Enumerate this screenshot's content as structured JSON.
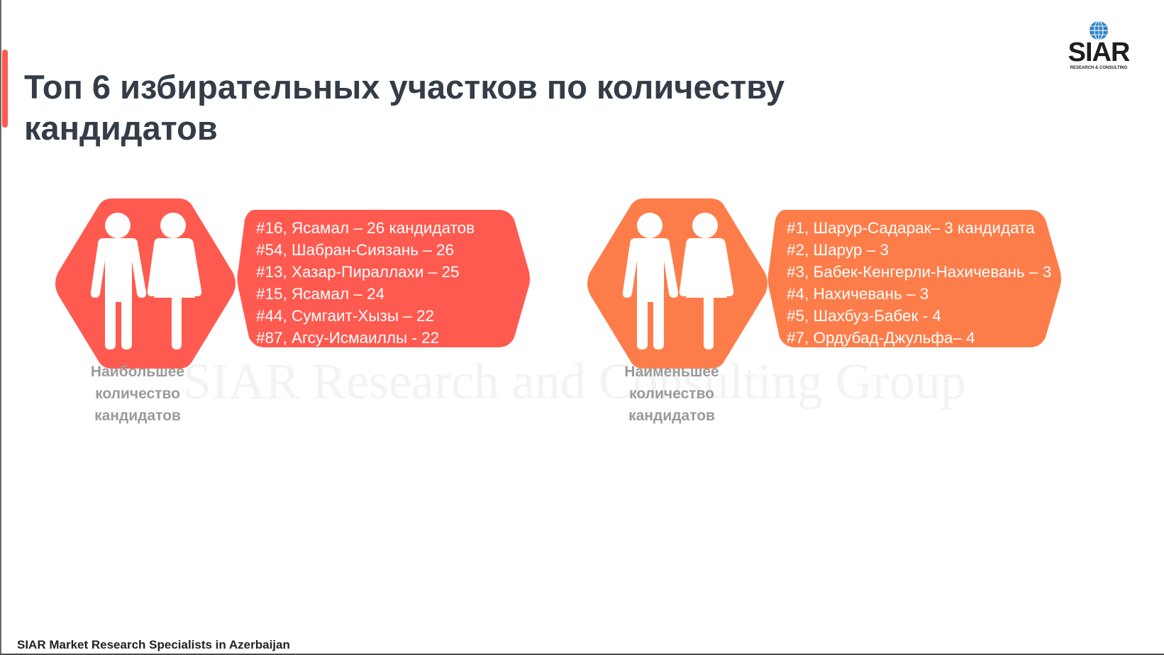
{
  "slide": {
    "title": "Топ 6 избирательных участков по количеству кандидатов",
    "footer": "SIAR Market Research Specialists in Azerbaijan",
    "watermark": "SIAR Research and Consulting Group"
  },
  "logo": {
    "word": "SIAR",
    "sub": "RESEARCH & CONSULTING",
    "icon": "globe-icon"
  },
  "most": {
    "caption": "Наибольшее количество кандидатов",
    "color": "#ff5a50",
    "icon": "people-icon",
    "items": [
      "#16, Ясамал – 26 кандидатов",
      "#54, Шабран-Сиязань – 26",
      "#13, Хазар-Пираллахи – 25",
      "#15, Ясамал – 24",
      "#44, Сумгаит-Хызы – 22",
      "#87, Агсу-Исмаиллы - 22"
    ]
  },
  "least": {
    "caption": "Наименьшее количество кандидатов",
    "color": "#fd7d4a",
    "icon": "people-icon",
    "items": [
      "#1, Шарур-Садарак– 3 кандидата",
      "#2, Шарур – 3",
      "#3, Бабек-Кенгерли-Нахичевань – 3",
      "#4, Нахичевань – 3",
      "#5, Шахбуз-Бабек - 4",
      "#7, Ордубад-Джульфа– 4"
    ]
  }
}
